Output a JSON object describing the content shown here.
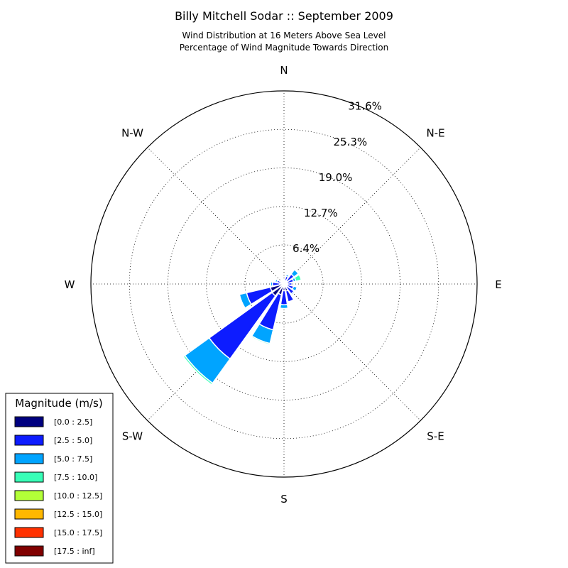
{
  "chart_data": {
    "type": "windrose",
    "title": "Billy Mitchell Sodar :: September 2009",
    "subtitle_lines": [
      "Wind Distribution at 16 Meters Above Sea Level",
      "Percentage of Wind Magnitude Towards Direction"
    ],
    "directions": [
      "N",
      "N-E",
      "E",
      "S-E",
      "S",
      "S-W",
      "W",
      "N-W"
    ],
    "radial_ticks": [
      "6.4%",
      "12.7%",
      "19.0%",
      "25.3%",
      "31.6%"
    ],
    "radial_tick_values": [
      6.4,
      12.7,
      19.0,
      25.3,
      31.6
    ],
    "rmax": 31.6,
    "grid": true,
    "legend": {
      "title": "Magnitude (m/s)",
      "placement": "bottom-left",
      "entries": [
        {
          "label": "[0.0 : 2.5]",
          "color": "#000080"
        },
        {
          "label": "[2.5 : 5.0]",
          "color": "#0d1cff"
        },
        {
          "label": "[5.0 : 7.5]",
          "color": "#00a4ff"
        },
        {
          "label": "[7.5 : 10.0]",
          "color": "#38ffb7"
        },
        {
          "label": "[10.0 : 12.5]",
          "color": "#b3ff38"
        },
        {
          "label": "[12.5 : 15.0]",
          "color": "#ffb800"
        },
        {
          "label": "[15.0 : 17.5]",
          "color": "#ff3100"
        },
        {
          "label": "[17.5 : inf]",
          "color": "#800000"
        }
      ]
    },
    "sectors": [
      {
        "direction_deg": 0,
        "cumulative": [
          0.3,
          0.5
        ]
      },
      {
        "direction_deg": 22.5,
        "cumulative": [
          0.6,
          1.3,
          1.6
        ]
      },
      {
        "direction_deg": 45,
        "cumulative": [
          0.6,
          2.0,
          2.9
        ]
      },
      {
        "direction_deg": 67.5,
        "cumulative": [
          0.6,
          1.6,
          2.0,
          2.9
        ]
      },
      {
        "direction_deg": 90,
        "cumulative": [
          0.6,
          1.3
        ]
      },
      {
        "direction_deg": 112.5,
        "cumulative": [
          0.6,
          1.6,
          2.2
        ]
      },
      {
        "direction_deg": 135,
        "cumulative": [
          0.6,
          2.0,
          2.2
        ]
      },
      {
        "direction_deg": 157.5,
        "cumulative": [
          1.2,
          3.0
        ]
      },
      {
        "direction_deg": 180,
        "cumulative": [
          1.1,
          3.4,
          4.0
        ]
      },
      {
        "direction_deg": 202.5,
        "cumulative": [
          1.8,
          7.7,
          10.0,
          10.2
        ]
      },
      {
        "direction_deg": 225,
        "cumulative": [
          2.4,
          15.1,
          20.0,
          20.3
        ]
      },
      {
        "direction_deg": 247.5,
        "cumulative": [
          2.3,
          6.3,
          7.5,
          7.6
        ]
      },
      {
        "direction_deg": 270,
        "cumulative": [
          0.7,
          1.9,
          2.2
        ]
      },
      {
        "direction_deg": 292.5,
        "cumulative": [
          0.5,
          1.2,
          1.5
        ]
      },
      {
        "direction_deg": 315,
        "cumulative": [
          0.4,
          0.6
        ]
      },
      {
        "direction_deg": 337.5,
        "cumulative": [
          0.3,
          0.5
        ]
      }
    ]
  }
}
